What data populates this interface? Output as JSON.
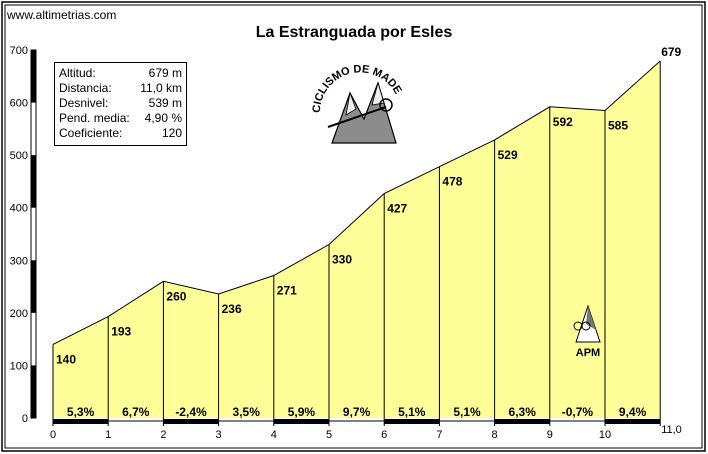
{
  "site": "www.altimetrias.com",
  "title": "La Estranguada por Esles",
  "stats": [
    {
      "label": "Altitud:",
      "value": "679 m"
    },
    {
      "label": "Distancia:",
      "value": "11,0 km"
    },
    {
      "label": "Desnivel:",
      "value": "539 m"
    },
    {
      "label": "Pend. media:",
      "value": "4,90 %"
    },
    {
      "label": "Coeficiente:",
      "value": "120"
    }
  ],
  "logo": {
    "text": "CICLISMO DE MADERA Y VIENTO",
    "icon": "mountain-bike-skeleton-icon"
  },
  "apm": {
    "label": "APM",
    "icon": "mountain-cyclist-icon"
  },
  "chart_data": {
    "type": "area",
    "x": [
      0,
      1,
      2,
      3,
      4,
      5,
      6,
      7,
      8,
      9,
      10,
      11
    ],
    "y": [
      140,
      193,
      260,
      236,
      271,
      330,
      427,
      478,
      529,
      592,
      585,
      679
    ],
    "point_labels": [
      "140",
      "193",
      "260",
      "236",
      "271",
      "330",
      "427",
      "478",
      "529",
      "592",
      "585",
      "679"
    ],
    "segment_grades": [
      "5,3%",
      "6,7%",
      "-2,4%",
      "3,5%",
      "5,9%",
      "9,7%",
      "5,1%",
      "5,1%",
      "6,3%",
      "-0,7%",
      "9,4%"
    ],
    "x_ticks": [
      "0",
      "1",
      "2",
      "3",
      "4",
      "5",
      "6",
      "7",
      "8",
      "9",
      "10",
      "11,0"
    ],
    "y_ticks": [
      "0",
      "100",
      "200",
      "300",
      "400",
      "500",
      "600",
      "700"
    ],
    "xlim": [
      0,
      11
    ],
    "ylim": [
      0,
      700
    ],
    "fill_color": "#ffff99",
    "line_color": "#000000"
  }
}
